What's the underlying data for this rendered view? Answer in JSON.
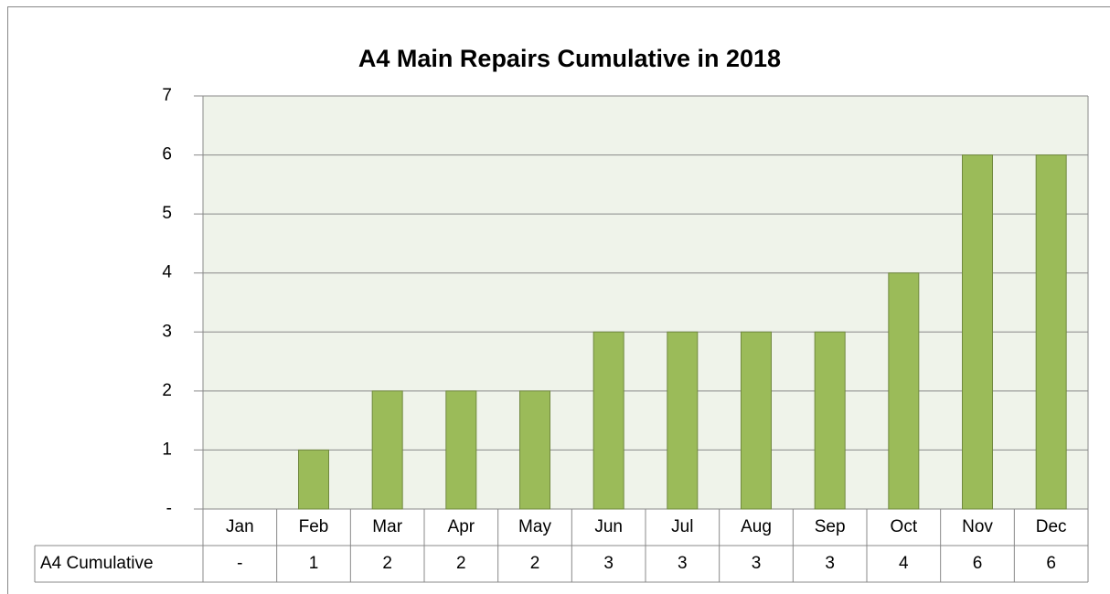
{
  "chart_data": {
    "type": "bar",
    "title": "A4 Main Repairs Cumulative in 2018",
    "categories": [
      "Jan",
      "Feb",
      "Mar",
      "Apr",
      "May",
      "Jun",
      "Jul",
      "Aug",
      "Sep",
      "Oct",
      "Nov",
      "Dec"
    ],
    "series": [
      {
        "name": "A4 Cumulative",
        "color": "#9bbb59",
        "values": [
          0,
          1,
          2,
          2,
          2,
          3,
          3,
          3,
          3,
          4,
          6,
          6
        ],
        "value_labels": [
          "-",
          "1",
          "2",
          "2",
          "2",
          "3",
          "3",
          "3",
          "3",
          "4",
          "6",
          "6"
        ]
      }
    ],
    "ylim": [
      0,
      7
    ],
    "yticks": [
      {
        "value": 0,
        "label": "-"
      },
      1,
      2,
      3,
      4,
      5,
      6,
      7
    ],
    "grid": true
  }
}
